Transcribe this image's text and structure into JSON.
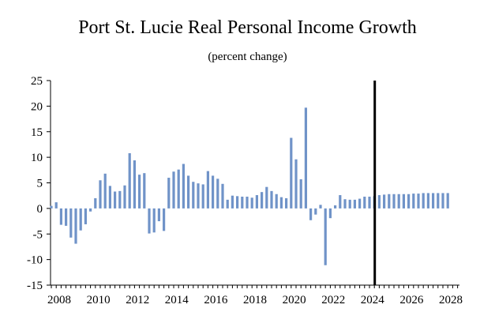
{
  "chart_data": {
    "type": "bar",
    "title": "Port St. Lucie Real Personal Income Growth",
    "subtitle": "(percent change)",
    "xlabel": "",
    "ylabel": "",
    "ylim": [
      -15,
      25
    ],
    "yticks": [
      "25",
      "20",
      "15",
      "10",
      "5",
      "0",
      "-5",
      "-10",
      "-15"
    ],
    "xticks": [
      "2008",
      "2010",
      "2012",
      "2014",
      "2016",
      "2018",
      "2020",
      "2022",
      "2024",
      "2026",
      "2028"
    ],
    "bar_color": "#7093c8",
    "forecast_marker": {
      "quarter_index": 66,
      "color": "#000000"
    },
    "series": [
      {
        "name": "Real Personal Income Growth",
        "start_year": 2008,
        "frequency": "quarterly",
        "values": [
          0.5,
          1.2,
          -3.2,
          -3.4,
          -5.7,
          -6.9,
          -4.3,
          -3.1,
          -0.6,
          2.0,
          5.5,
          6.8,
          4.4,
          3.3,
          3.4,
          4.5,
          10.8,
          9.4,
          6.6,
          6.9,
          -4.9,
          -4.7,
          -2.5,
          -4.4,
          6.0,
          7.2,
          7.6,
          8.7,
          6.4,
          5.2,
          4.9,
          4.7,
          7.3,
          6.4,
          5.8,
          4.8,
          1.7,
          2.5,
          2.4,
          2.3,
          2.3,
          2.1,
          2.6,
          3.2,
          4.2,
          3.4,
          2.8,
          2.2,
          2.0,
          13.8,
          9.6,
          5.7,
          19.7,
          -2.3,
          -1.2,
          0.7,
          -11.1,
          -1.9,
          0.6,
          2.6,
          1.8,
          1.7,
          1.7,
          1.9,
          2.3,
          2.3,
          2.4,
          2.6,
          2.7,
          2.8,
          2.8,
          2.8,
          2.8,
          2.8,
          2.9,
          2.9,
          3.0,
          3.0,
          3.0,
          3.0,
          3.0,
          3.0
        ]
      }
    ]
  }
}
